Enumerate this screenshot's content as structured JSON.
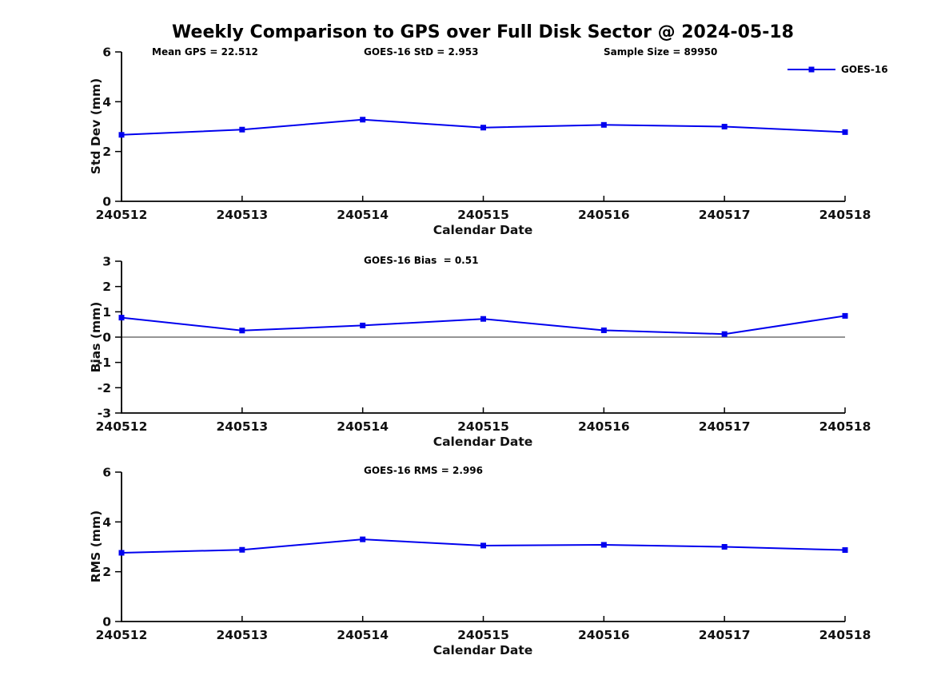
{
  "title": "Weekly Comparison to GPS over Full Disk Sector @ 2024-05-18",
  "legend": {
    "label": "GOES-16"
  },
  "colors": {
    "series": "#0000ee",
    "axis": "#000000",
    "zero_line": "#707070",
    "text": "#111111"
  },
  "chart_data": [
    {
      "type": "line",
      "categories": [
        "240512",
        "240513",
        "240514",
        "240515",
        "240516",
        "240517",
        "240518"
      ],
      "series": [
        {
          "name": "GOES-16",
          "values": [
            2.67,
            2.88,
            3.28,
            2.96,
            3.07,
            3.0,
            2.78
          ]
        }
      ],
      "ylabel": "Std Dev (mm)",
      "xlabel": "Calendar Date",
      "ylim": [
        0,
        6
      ],
      "yticks": [
        0,
        2,
        4,
        6
      ],
      "grid": false,
      "zero_line": false,
      "annotations": [
        "Mean GPS = 22.512",
        "GOES-16 StD = 2.953",
        "Sample Size = 89950"
      ],
      "legend": {
        "label": "GOES-16",
        "position": "top-right"
      }
    },
    {
      "type": "line",
      "categories": [
        "240512",
        "240513",
        "240514",
        "240515",
        "240516",
        "240517",
        "240518"
      ],
      "series": [
        {
          "name": "GOES-16",
          "values": [
            0.77,
            0.26,
            0.46,
            0.72,
            0.27,
            0.12,
            0.84
          ]
        }
      ],
      "ylabel": "Bias (mm)",
      "xlabel": "Calendar Date",
      "ylim": [
        -3,
        3
      ],
      "yticks": [
        3,
        2,
        1,
        0,
        -1,
        -2,
        -3
      ],
      "grid": false,
      "zero_line": true,
      "annotations": [
        "GOES-16 Bias  = 0.51"
      ]
    },
    {
      "type": "line",
      "categories": [
        "240512",
        "240513",
        "240514",
        "240515",
        "240516",
        "240517",
        "240518"
      ],
      "series": [
        {
          "name": "GOES-16",
          "values": [
            2.76,
            2.88,
            3.3,
            3.05,
            3.08,
            3.0,
            2.87
          ]
        }
      ],
      "ylabel": "RMS (mm)",
      "xlabel": "Calendar Date",
      "ylim": [
        0,
        6
      ],
      "yticks": [
        0,
        2,
        4,
        6
      ],
      "grid": false,
      "zero_line": false,
      "annotations": [
        "GOES-16 RMS = 2.996"
      ]
    }
  ]
}
